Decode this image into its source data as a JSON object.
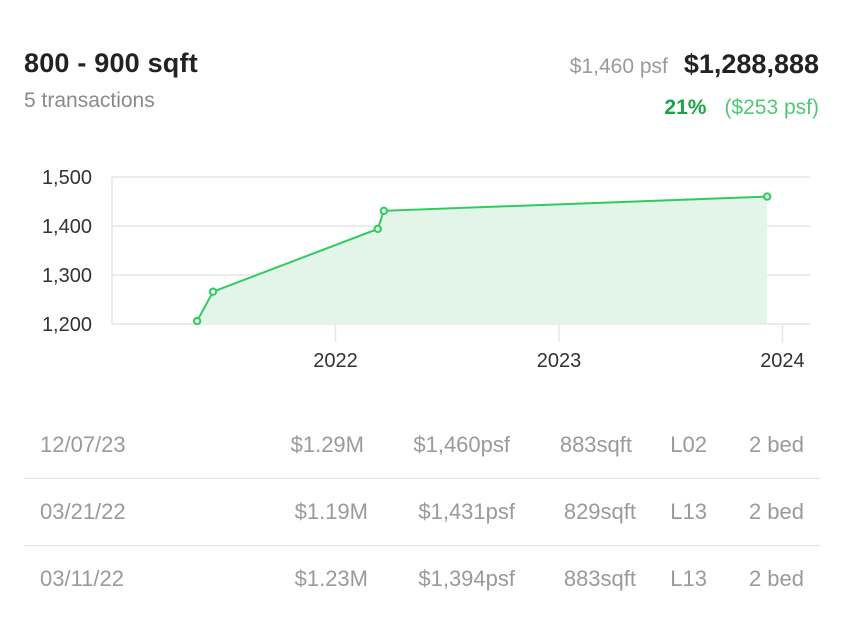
{
  "header": {
    "title": "800 - 900 sqft",
    "subtitle": "5 transactions",
    "psf": "$1,460 psf",
    "price": "$1,288,888",
    "change_pct": "21%",
    "change_psf": "($253 psf)"
  },
  "chart_data": {
    "type": "area",
    "x_ticks": [
      "2022",
      "2023",
      "2024"
    ],
    "y_ticks": [
      "1,200",
      "1,300",
      "1,400",
      "1,500"
    ],
    "ylim": [
      1200,
      1500
    ],
    "xlim": [
      "2021-01-01",
      "2024-02-15"
    ],
    "points": [
      {
        "x": "2021-05-20",
        "y": 1206
      },
      {
        "x": "2021-06-15",
        "y": 1266
      },
      {
        "x": "2022-03-11",
        "y": 1394
      },
      {
        "x": "2022-03-21",
        "y": 1431
      },
      {
        "x": "2023-12-07",
        "y": 1460
      }
    ],
    "colors": {
      "line": "#2ecc5f",
      "fill": "#e3f5e8",
      "grid": "#e6e6e6"
    },
    "grid": true
  },
  "transactions": [
    {
      "date": "12/07/23",
      "price": "$1.29M",
      "psf": "$1,460psf",
      "size": "883sqft",
      "level": "L02",
      "beds": "2 bed"
    },
    {
      "date": "03/21/22",
      "price": "$1.19M",
      "psf": "$1,431psf",
      "size": "829sqft",
      "level": "L13",
      "beds": "2 bed"
    },
    {
      "date": "03/11/22",
      "price": "$1.23M",
      "psf": "$1,394psf",
      "size": "883sqft",
      "level": "L13",
      "beds": "2 bed"
    }
  ]
}
